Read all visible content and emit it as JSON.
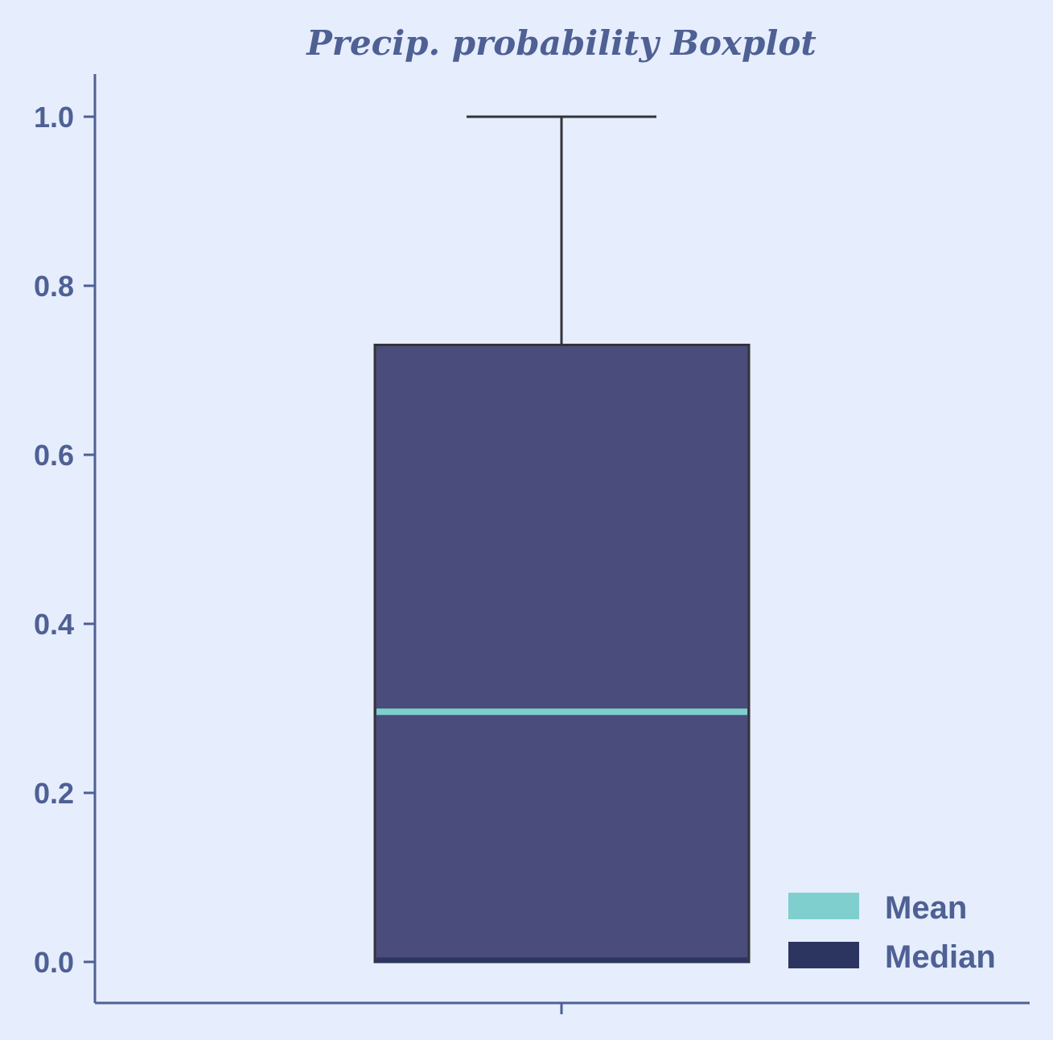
{
  "chart_data": {
    "type": "box",
    "title": "Precip. probability Boxplot",
    "xlabel": "",
    "ylabel": "",
    "ylim": [
      -0.05,
      1.05
    ],
    "yticks": [
      0.0,
      0.2,
      0.4,
      0.6,
      0.8,
      1.0
    ],
    "ytick_labels": [
      "0.0",
      "0.2",
      "0.4",
      "0.6",
      "0.8",
      "1.0"
    ],
    "grid": false,
    "legend_position": "bottom-right",
    "box": {
      "whisker_low": 0.0,
      "q1": 0.0,
      "median": 0.0,
      "mean": 0.296,
      "q3": 0.73,
      "whisker_high": 1.0
    },
    "legend": [
      {
        "label": "Mean",
        "color": "#7ecfcd"
      },
      {
        "label": "Median",
        "color": "#2b3560"
      }
    ],
    "colors": {
      "background": "#e6edfc",
      "axis": "#4e6094",
      "box_fill": "#4a4c7c",
      "box_edge": "#333339",
      "mean_line": "#7ecfcd",
      "median_line": "#2b3560",
      "text": "#4e6094"
    }
  }
}
